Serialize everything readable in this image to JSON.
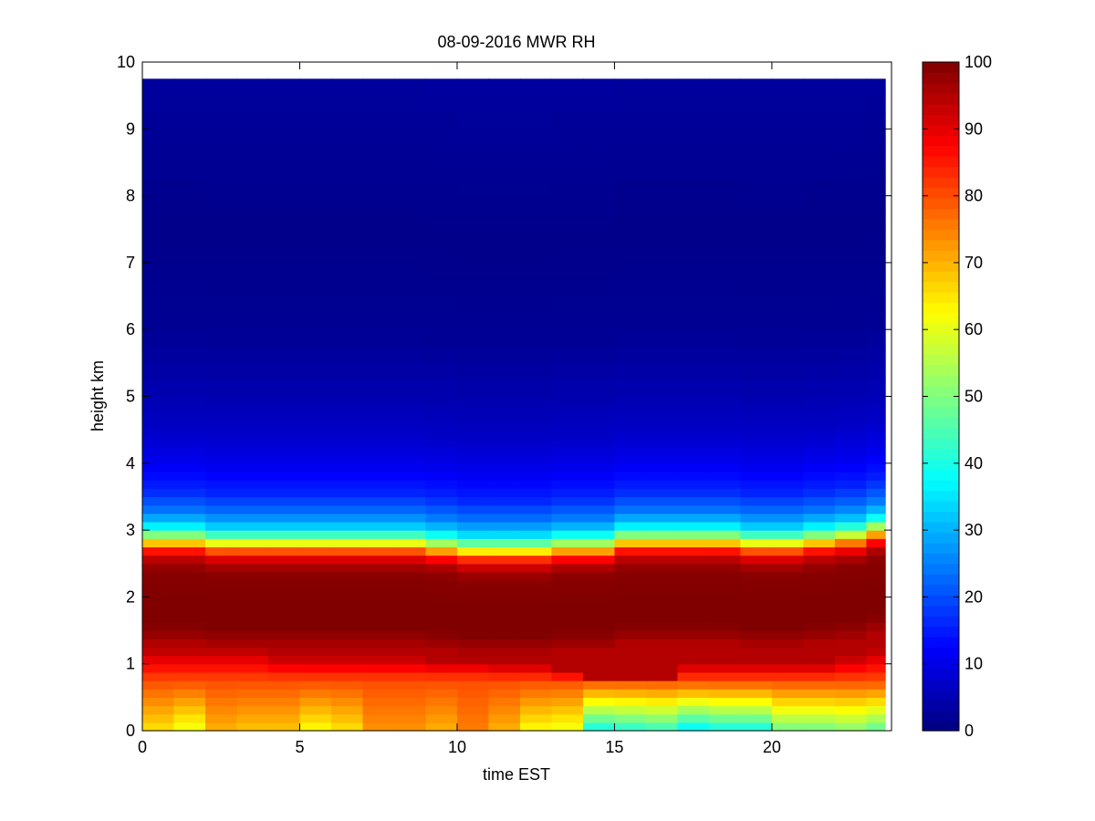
{
  "chart_data": {
    "type": "heatmap",
    "title": "08-09-2016 MWR RH",
    "xlabel": "time EST",
    "ylabel": "height km",
    "xlim": [
      0,
      23.8
    ],
    "ylim": [
      0,
      10
    ],
    "xticks": [
      "0",
      "5",
      "10",
      "15",
      "20"
    ],
    "yticks": [
      "0",
      "1",
      "2",
      "3",
      "4",
      "5",
      "6",
      "7",
      "8",
      "9",
      "10"
    ],
    "colorbar": {
      "colormap": "jet",
      "clim": [
        0,
        100
      ],
      "ticks": [
        "0",
        "10",
        "20",
        "30",
        "40",
        "50",
        "60",
        "70",
        "80",
        "90",
        "100"
      ]
    },
    "x": [
      0.5,
      1.5,
      2.5,
      3.5,
      4.5,
      5.5,
      6.5,
      7.5,
      8.5,
      9.5,
      10.5,
      11.5,
      12.5,
      13.5,
      14.5,
      15.5,
      16.5,
      17.5,
      18.5,
      19.5,
      20.5,
      21.5,
      22.5,
      23.5
    ],
    "x_cell_width": 1.0,
    "x_data_end": 23.6,
    "y_data_top": 9.75,
    "profile_heights_km": [
      0.0,
      0.2,
      0.4,
      0.6,
      0.8,
      1.0,
      1.2,
      1.4,
      1.6,
      2.0,
      2.4,
      2.55,
      2.7,
      2.8,
      2.9,
      3.0,
      3.1,
      3.3,
      3.6,
      4.0,
      4.5,
      5.0,
      6.0,
      7.5,
      9.75
    ],
    "profile_rh_percent": [
      62,
      66,
      70,
      76,
      82,
      88,
      93,
      97,
      100,
      100,
      99,
      95,
      85,
      70,
      55,
      42,
      33,
      24,
      16,
      11,
      7,
      5,
      2,
      1,
      3
    ],
    "time_offset_km": [
      0.0,
      0.0,
      -0.05,
      -0.05,
      -0.05,
      -0.05,
      -0.05,
      -0.05,
      -0.05,
      -0.1,
      -0.15,
      -0.15,
      -0.15,
      -0.1,
      -0.1,
      0.0,
      0.0,
      0.0,
      0.0,
      -0.05,
      -0.05,
      0.0,
      0.05,
      0.15
    ],
    "surface_rh_percent": [
      65,
      60,
      70,
      68,
      68,
      62,
      65,
      73,
      73,
      70,
      75,
      70,
      62,
      60,
      38,
      40,
      42,
      35,
      38,
      38,
      48,
      48,
      50,
      46
    ],
    "surface_layer_top_km": 0.75,
    "lower_band_top_km": [
      1.2,
      1.2,
      1.2,
      1.2,
      1.1,
      1.1,
      1.1,
      1.1,
      1.1,
      1.05,
      1.05,
      1.0,
      1.0,
      0.9,
      0.75,
      0.7,
      0.65,
      1.0,
      1.0,
      1.0,
      1.0,
      1.0,
      1.1,
      1.2
    ]
  }
}
